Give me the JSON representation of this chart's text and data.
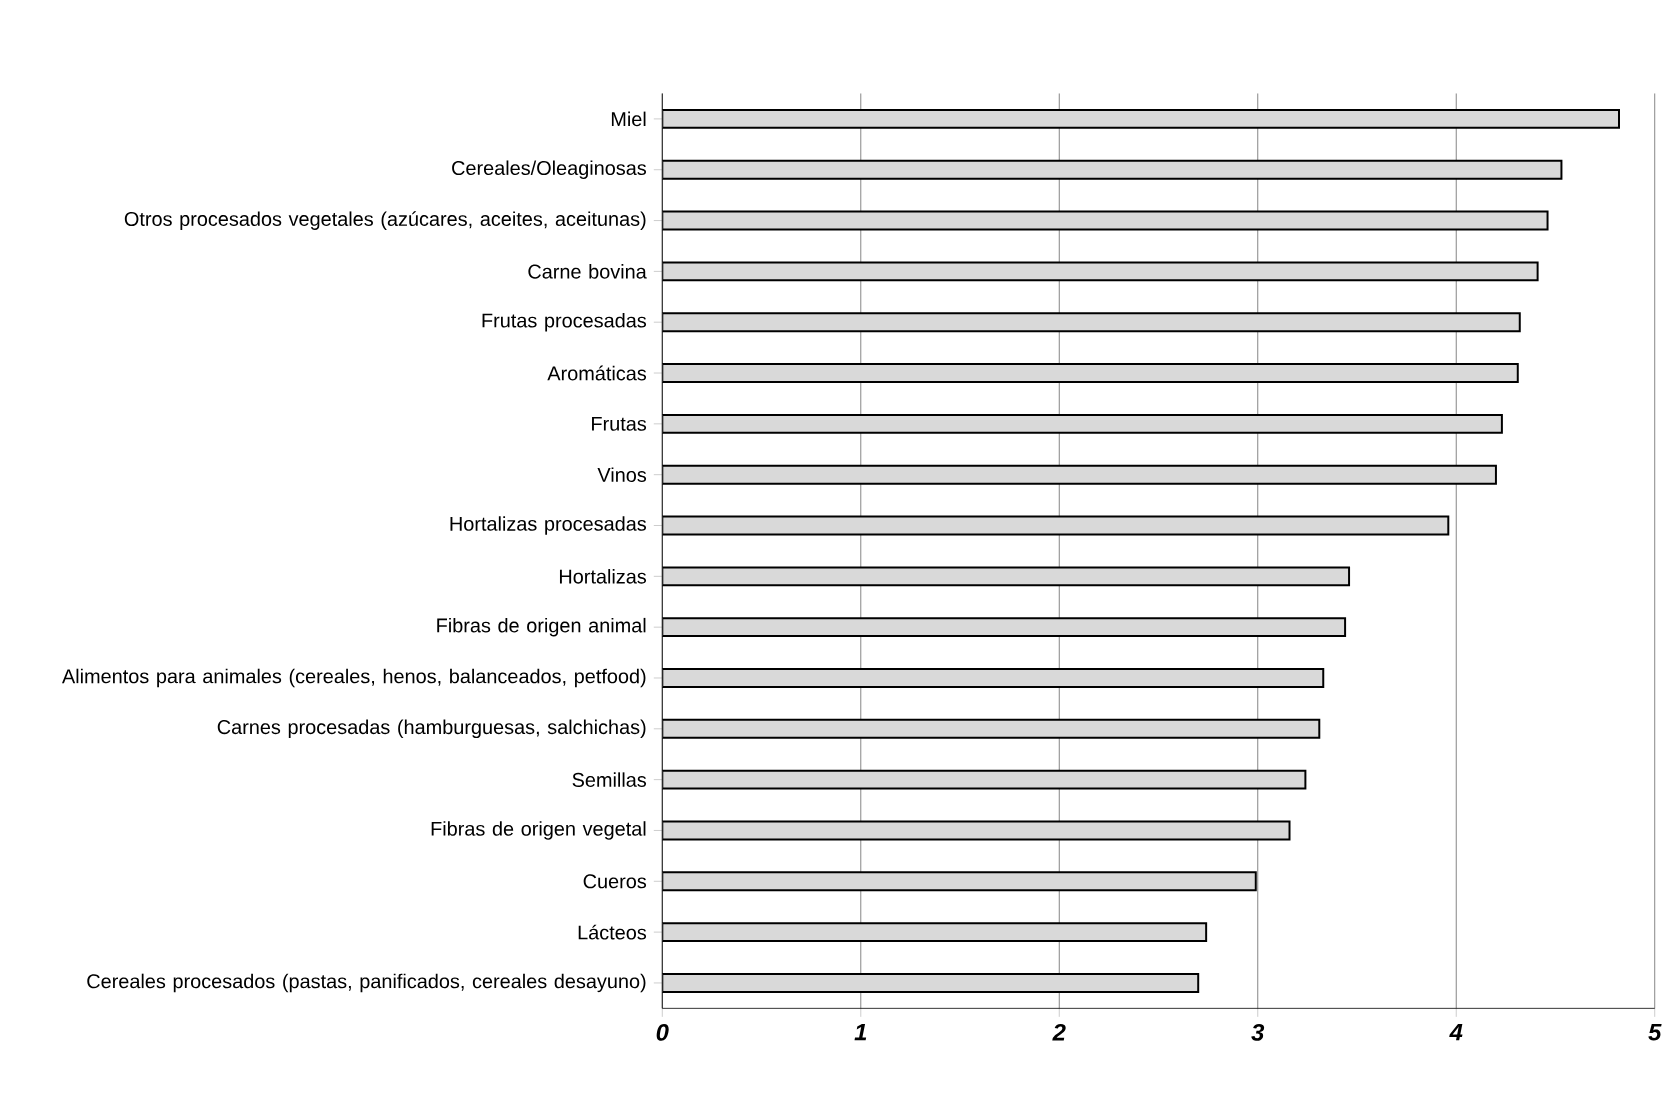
{
  "chart_data": {
    "type": "bar",
    "orientation": "horizontal",
    "categories": [
      "Miel",
      "Cereales/Oleaginosas",
      "Otros procesados vegetales (azúcares, aceites, aceitunas)",
      "Carne bovina",
      "Frutas procesadas",
      "Aromáticas",
      "Frutas",
      "Vinos",
      "Hortalizas procesadas",
      "Hortalizas",
      "Fibras de origen animal",
      "Alimentos para animales (cereales, henos, balanceados, petfood)",
      "Carnes procesadas (hamburguesas, salchichas)",
      "Semillas",
      "Fibras de origen vegetal",
      "Cueros",
      "Lácteos",
      "Cereales procesados (pastas, panificados, cereales desayuno)"
    ],
    "values": [
      4.82,
      4.53,
      4.46,
      4.41,
      4.32,
      4.31,
      4.23,
      4.2,
      3.96,
      3.46,
      3.44,
      3.33,
      3.31,
      3.24,
      3.16,
      2.99,
      2.74,
      2.7
    ],
    "color": "#d9d9d9",
    "xlim": [
      0,
      5
    ],
    "xticks": [
      0,
      1,
      2,
      3,
      4,
      5
    ],
    "grid": "x"
  }
}
